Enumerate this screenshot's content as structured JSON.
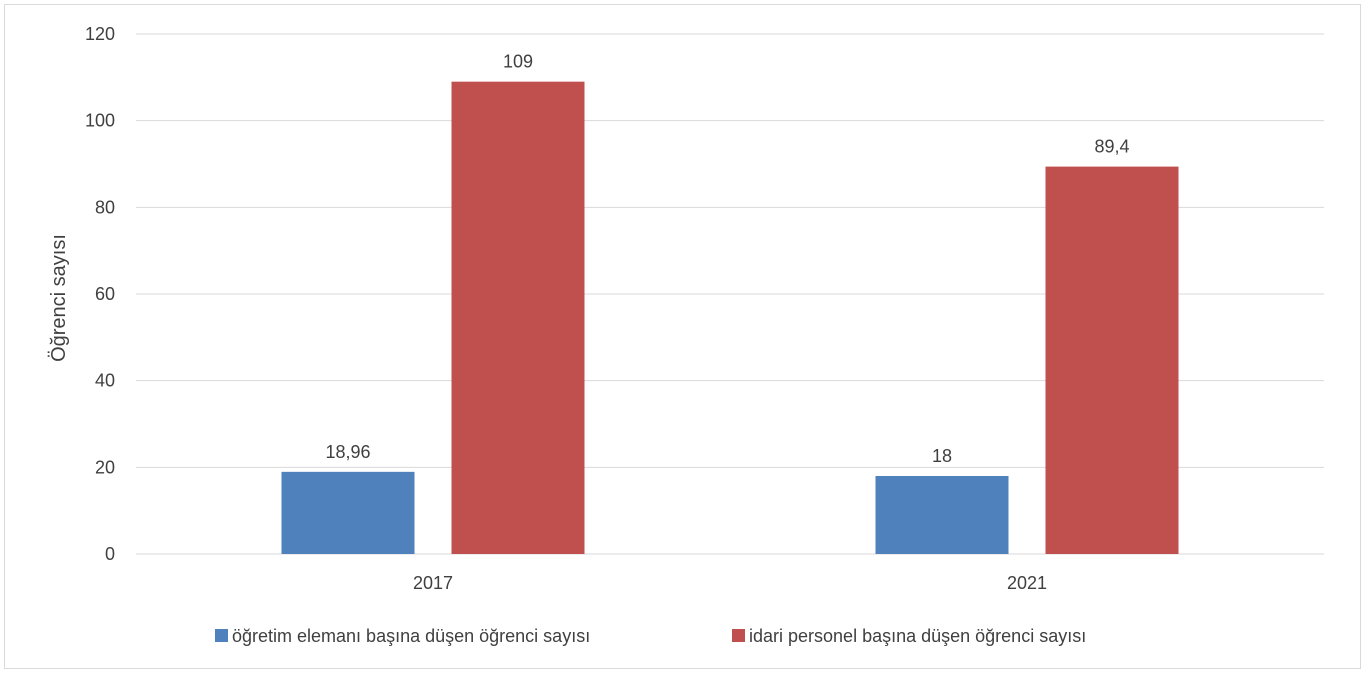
{
  "chart_data": {
    "type": "bar",
    "title": "",
    "xlabel": "",
    "ylabel": "Öğrenci sayısı",
    "categories": [
      "2017",
      "2021"
    ],
    "ylim": [
      0,
      120
    ],
    "yticks": [
      0,
      20,
      40,
      60,
      80,
      100,
      120
    ],
    "grid": true,
    "legend_position": "bottom",
    "series": [
      {
        "name": "öğretim elemanı başına düşen öğrenci sayısı",
        "color": "#4f81bd",
        "values": [
          18.96,
          18
        ],
        "labels": [
          "18,96",
          "18"
        ]
      },
      {
        "name": "idari personel başına düşen öğrenci sayısı",
        "color": "#c0504d",
        "values": [
          109,
          89.4
        ],
        "labels": [
          "109",
          "89,4"
        ]
      }
    ]
  }
}
